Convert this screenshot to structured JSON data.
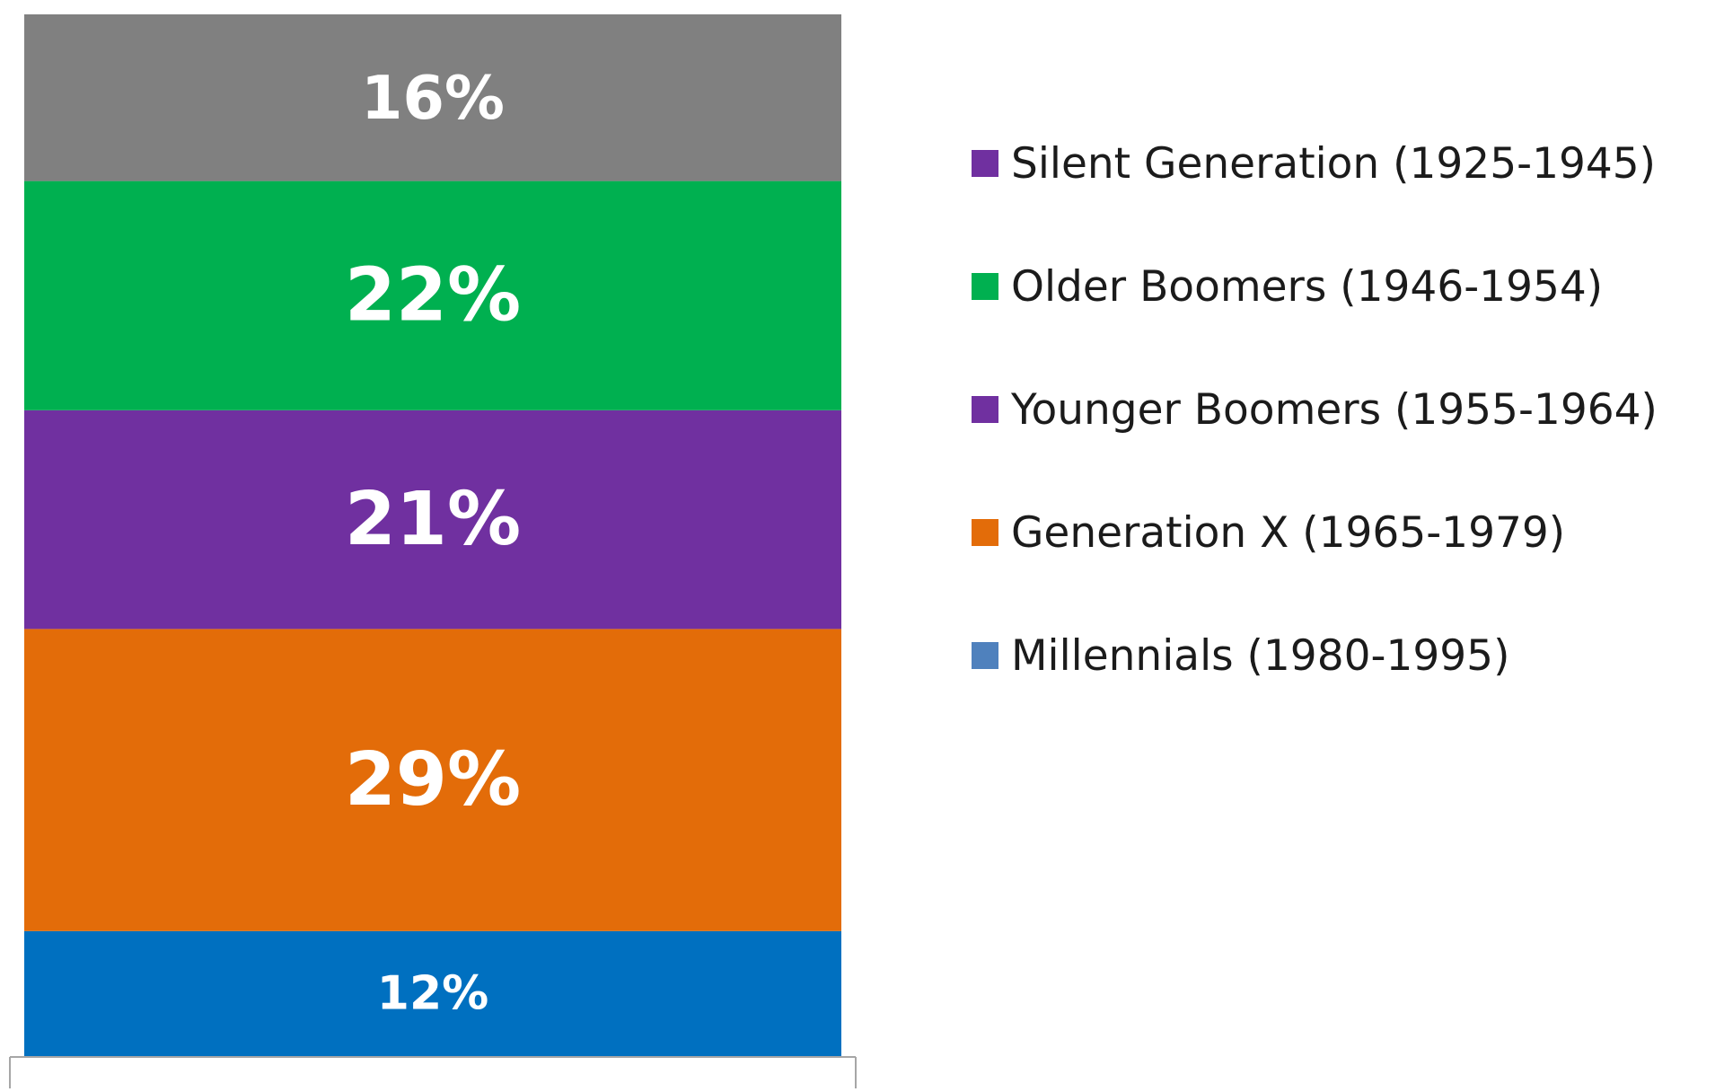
{
  "chart_data": {
    "type": "bar",
    "stacked": true,
    "orientation": "vertical",
    "categories": [
      ""
    ],
    "series": [
      {
        "name": "Millennials (1980-1995)",
        "values": [
          12
        ],
        "label": "12%",
        "color": "#0070c0"
      },
      {
        "name": "Generation X (1965-1979)",
        "values": [
          29
        ],
        "label": "29%",
        "color": "#e36c09"
      },
      {
        "name": "Younger Boomers (1955-1964)",
        "values": [
          21
        ],
        "label": "21%",
        "color": "#7030a0"
      },
      {
        "name": "Older Boomers (1946-1954)",
        "values": [
          22
        ],
        "label": "22%",
        "color": "#00b050"
      },
      {
        "name": "",
        "values": [
          16
        ],
        "label": "16%",
        "color": "#808080"
      }
    ],
    "ylim": [
      0,
      100
    ],
    "grid": false,
    "legend": {
      "placement": "right",
      "entries": [
        {
          "label": "Silent Generation (1925-1945)",
          "color": "#7030a0"
        },
        {
          "label": "Older Boomers (1946-1954)",
          "color": "#00b050"
        },
        {
          "label": "Younger Boomers (1955-1964)",
          "color": "#7030a0"
        },
        {
          "label": "Generation X (1965-1979)",
          "color": "#e36c09"
        },
        {
          "label": "Millennials (1980-1995)",
          "color": "#4f81bd"
        }
      ]
    },
    "axis_color": "#a6a6a6",
    "data_label_color": "#ffffff"
  }
}
